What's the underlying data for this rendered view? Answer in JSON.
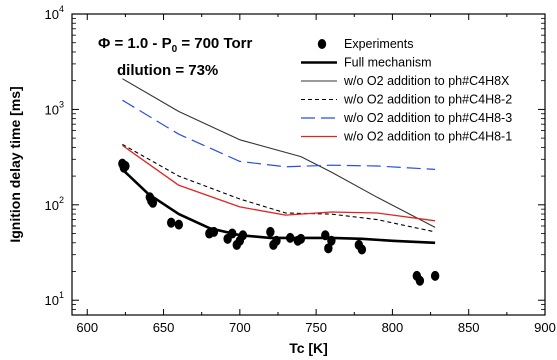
{
  "chart_data": {
    "type": "line",
    "xlabel": "Tc [K]",
    "ylabel": "Ignition delay time [ms]",
    "xlim": [
      590,
      900
    ],
    "ylim": [
      7,
      10000
    ],
    "yscale": "log",
    "grid": false,
    "legend_placement": "top-right",
    "annotation": {
      "line1": "Φ = 1.0 - P",
      "line1_sub": "0",
      "line1_rest": " = 700 Torr",
      "line2": "dilution = 73%"
    },
    "xticks": [
      600,
      650,
      700,
      750,
      800,
      850,
      900
    ],
    "yticks": [
      {
        "value": 10,
        "base": "10",
        "exp": "1"
      },
      {
        "value": 100,
        "base": "10",
        "exp": "2"
      },
      {
        "value": 1000,
        "base": "10",
        "exp": "3"
      },
      {
        "value": 10000,
        "base": "10",
        "exp": "4"
      }
    ],
    "series": [
      {
        "name": "Experiments",
        "kind": "scatter",
        "color": "#000000",
        "x": [
          623,
          624,
          625,
          641,
          642,
          643,
          655,
          660,
          680,
          683,
          692,
          695,
          698,
          700,
          702,
          720,
          722,
          724,
          733,
          738,
          740,
          756,
          758,
          760,
          778,
          780,
          816,
          818,
          828
        ],
        "y": [
          270,
          245,
          255,
          120,
          110,
          105,
          65,
          62,
          50,
          52,
          44,
          50,
          38,
          42,
          48,
          52,
          38,
          42,
          45,
          42,
          44,
          48,
          35,
          42,
          38,
          34,
          18,
          16,
          18
        ]
      },
      {
        "name": "Full mechanism",
        "kind": "line",
        "color": "#000000",
        "width": 2.6,
        "dash": "",
        "x": [
          623,
          640,
          660,
          680,
          700,
          720,
          740,
          760,
          780,
          800,
          828
        ],
        "y": [
          235,
          130,
          80,
          57,
          48,
          45,
          45,
          45,
          44,
          42,
          40
        ]
      },
      {
        "name": "w/o O2 addition to ph#C4H8X",
        "kind": "line",
        "color": "#333333",
        "width": 1.1,
        "dash": "",
        "x": [
          623,
          660,
          700,
          740,
          760,
          790,
          828
        ],
        "y": [
          2100,
          950,
          480,
          320,
          220,
          120,
          58
        ]
      },
      {
        "name": "w/o O2 addition to ph#C4H8-2",
        "kind": "line",
        "color": "#000000",
        "width": 1.1,
        "dash": "4,3",
        "x": [
          623,
          660,
          700,
          730,
          760,
          790,
          828
        ],
        "y": [
          430,
          200,
          115,
          82,
          80,
          70,
          52
        ]
      },
      {
        "name": "w/o O2 addition to ph#C4H8-3",
        "kind": "line",
        "color": "#2a4ee6",
        "width": 1.2,
        "dash": "14,6",
        "x": [
          623,
          660,
          700,
          730,
          760,
          790,
          828
        ],
        "y": [
          1250,
          550,
          285,
          250,
          260,
          255,
          235
        ]
      },
      {
        "name": "w/o O2 addition to ph#C4H8-1",
        "kind": "line",
        "color": "#e32222",
        "width": 1.3,
        "dash": "",
        "x": [
          623,
          660,
          700,
          730,
          760,
          790,
          828
        ],
        "y": [
          420,
          160,
          95,
          78,
          84,
          82,
          68
        ]
      }
    ]
  }
}
